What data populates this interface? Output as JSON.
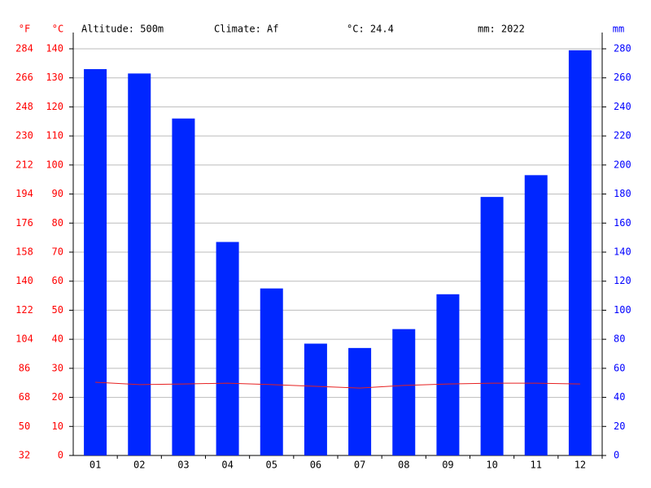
{
  "chart_data": {
    "type": "climate",
    "annotations": [
      "Altitude: 500m",
      "Climate: Af",
      "°C: 24.4",
      "mm: 2022"
    ],
    "flabel": "°F",
    "ylabel": "°C",
    "y2label": "mm",
    "categories": [
      "01",
      "02",
      "03",
      "04",
      "05",
      "06",
      "07",
      "08",
      "09",
      "10",
      "11",
      "12"
    ],
    "series": [
      {
        "name": "Precipitation",
        "type": "bar",
        "axis": "y2",
        "color": "#0026ff",
        "values": [
          266,
          263,
          232,
          147,
          115,
          77,
          74,
          87,
          111,
          178,
          193,
          279
        ]
      },
      {
        "name": "Temperature",
        "type": "line",
        "axis": "y",
        "color": "#e62020",
        "values": [
          25.2,
          24.4,
          24.6,
          24.9,
          24.4,
          23.8,
          23.2,
          24.1,
          24.6,
          24.9,
          24.9,
          24.6
        ]
      }
    ],
    "flim": [
      32,
      284
    ],
    "fticks": [
      32,
      50,
      68,
      86,
      104,
      122,
      140,
      158,
      176,
      194,
      212,
      230,
      248,
      266,
      284
    ],
    "ylim": [
      0,
      140
    ],
    "yticks": [
      0,
      10,
      20,
      30,
      40,
      50,
      60,
      70,
      80,
      90,
      100,
      110,
      120,
      130,
      140
    ],
    "y2lim": [
      0,
      280
    ],
    "y2ticks": [
      0,
      20,
      40,
      60,
      80,
      100,
      120,
      140,
      160,
      180,
      200,
      220,
      240,
      260,
      280
    ],
    "grid": true
  }
}
